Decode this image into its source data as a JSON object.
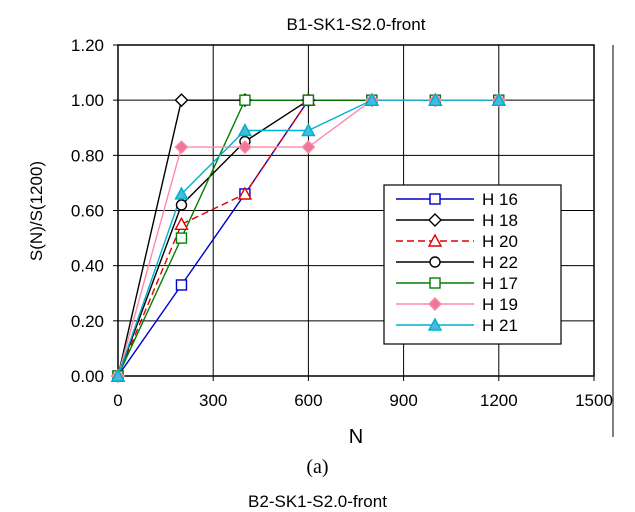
{
  "chart_data": {
    "type": "line",
    "title": "B1-SK1-S2.0-front",
    "xlabel": "N",
    "ylabel": "S(N)/S(1200)",
    "xlim": [
      0,
      1500
    ],
    "ylim": [
      0,
      1.2
    ],
    "x_ticks": [
      "0",
      "300",
      "600",
      "900",
      "1200",
      "1500"
    ],
    "y_ticks": [
      "0.00",
      "0.20",
      "0.40",
      "0.60",
      "0.80",
      "1.00",
      "1.20"
    ],
    "grid": true,
    "legend_position": "right",
    "series": [
      {
        "name": "H 16",
        "color": "#0000cc",
        "marker": "square",
        "dash": "solid",
        "x": [
          0,
          200,
          400,
          600,
          800,
          1000,
          1200
        ],
        "y": [
          0.0,
          0.33,
          0.66,
          1.0,
          1.0,
          1.0,
          1.0
        ]
      },
      {
        "name": "H 18",
        "color": "#000000",
        "marker": "diamond",
        "dash": "solid",
        "x": [
          0,
          200,
          400,
          600,
          800,
          1000,
          1200
        ],
        "y": [
          0.0,
          1.0,
          1.0,
          1.0,
          1.0,
          1.0,
          1.0
        ]
      },
      {
        "name": "H 20",
        "color": "#e00000",
        "marker": "triangle",
        "dash": "dashed",
        "x": [
          0,
          200,
          400,
          600,
          800,
          1000,
          1200
        ],
        "y": [
          0.0,
          0.55,
          0.66,
          1.0,
          1.0,
          1.0,
          1.0
        ]
      },
      {
        "name": "H 22",
        "color": "#000000",
        "marker": "circle",
        "dash": "solid",
        "x": [
          0,
          200,
          400,
          600,
          800,
          1000,
          1200
        ],
        "y": [
          0.0,
          0.62,
          0.85,
          1.0,
          1.0,
          1.0,
          1.0
        ]
      },
      {
        "name": "H 17",
        "color": "#008000",
        "marker": "square",
        "dash": "solid",
        "x": [
          0,
          200,
          400,
          600,
          800,
          1000,
          1200
        ],
        "y": [
          0.0,
          0.5,
          1.0,
          1.0,
          1.0,
          1.0,
          1.0
        ]
      },
      {
        "name": "H 19",
        "color": "#ff88aa",
        "marker": "diamond",
        "dash": "solid",
        "x": [
          0,
          200,
          400,
          600,
          800,
          1000,
          1200
        ],
        "y": [
          0.0,
          0.83,
          0.83,
          0.83,
          1.0,
          1.0,
          1.0
        ]
      },
      {
        "name": "H 21",
        "color": "#00b0d0",
        "marker": "triangle",
        "dash": "solid",
        "x": [
          0,
          200,
          400,
          600,
          800,
          1000,
          1200
        ],
        "y": [
          0.0,
          0.66,
          0.89,
          0.89,
          1.0,
          1.0,
          1.0
        ]
      }
    ]
  },
  "caption": "(a)",
  "next_title_partial": "B2-SK1-S2.0-front"
}
